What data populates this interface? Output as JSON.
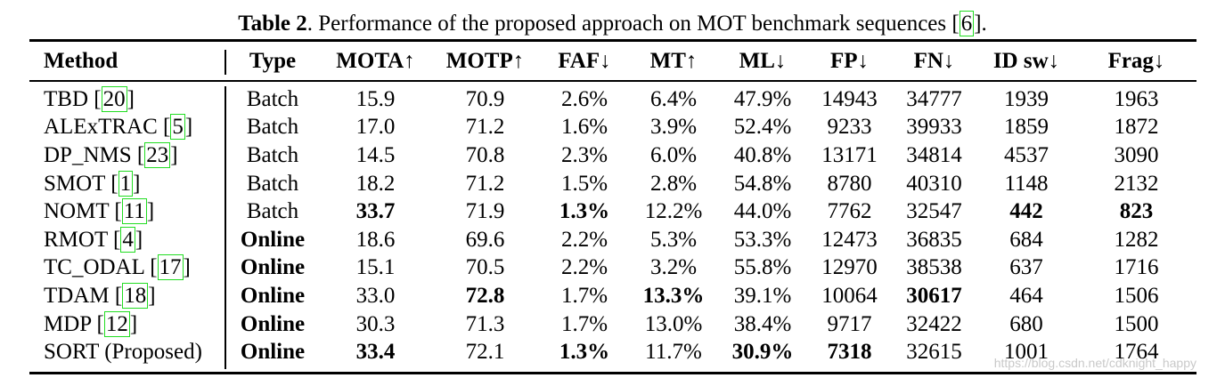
{
  "caption": {
    "label": "Table 2",
    "text": ". Performance of the proposed approach on MOT benchmark sequences [",
    "ref": "6",
    "end": "]."
  },
  "headers": [
    "Method",
    "Type",
    "MOTA↑",
    "MOTP↑",
    "FAF↓",
    "MT↑",
    "ML↓",
    "FP↓",
    "FN↓",
    "ID sw↓",
    "Frag↓"
  ],
  "rows": [
    {
      "name": "TBD [",
      "ref": "20",
      "close": "]",
      "type": "Batch",
      "values": [
        "15.9",
        "70.9",
        "2.6%",
        "6.4%",
        "47.9%",
        "14943",
        "34777",
        "1939",
        "1963"
      ]
    },
    {
      "name": "ALExTRAC [",
      "ref": "5",
      "close": "]",
      "type": "Batch",
      "values": [
        "17.0",
        "71.2",
        "1.6%",
        "3.9%",
        "52.4%",
        "9233",
        "39933",
        "1859",
        "1872"
      ]
    },
    {
      "name": "DP_NMS [",
      "ref": "23",
      "close": "]",
      "type": "Batch",
      "values": [
        "14.5",
        "70.8",
        "2.3%",
        "6.0%",
        "40.8%",
        "13171",
        "34814",
        "4537",
        "3090"
      ]
    },
    {
      "name": "SMOT [",
      "ref": "1",
      "close": "]",
      "type": "Batch",
      "values": [
        "18.2",
        "71.2",
        "1.5%",
        "2.8%",
        "54.8%",
        "8780",
        "40310",
        "1148",
        "2132"
      ]
    },
    {
      "name": "NOMT [",
      "ref": "11",
      "close": "]",
      "type": "Batch",
      "values": [
        "33.7",
        "71.9",
        "1.3%",
        "12.2%",
        "44.0%",
        "7762",
        "32547",
        "442",
        "823"
      ]
    },
    {
      "name": "RMOT [",
      "ref": "4",
      "close": "]",
      "type": "Online",
      "values": [
        "18.6",
        "69.6",
        "2.2%",
        "5.3%",
        "53.3%",
        "12473",
        "36835",
        "684",
        "1282"
      ]
    },
    {
      "name": "TC_ODAL [",
      "ref": "17",
      "close": "]",
      "type": "Online",
      "values": [
        "15.1",
        "70.5",
        "2.2%",
        "3.2%",
        "55.8%",
        "12970",
        "38538",
        "637",
        "1716"
      ]
    },
    {
      "name": "TDAM [",
      "ref": "18",
      "close": "]",
      "type": "Online",
      "values": [
        "33.0",
        "72.8",
        "1.7%",
        "13.3%",
        "39.1%",
        "10064",
        "30617",
        "464",
        "1506"
      ]
    },
    {
      "name": "MDP [",
      "ref": "12",
      "close": "]",
      "type": "Online",
      "values": [
        "30.3",
        "71.3",
        "1.7%",
        "13.0%",
        "38.4%",
        "9717",
        "32422",
        "680",
        "1500"
      ]
    },
    {
      "name": "SORT (Proposed)",
      "ref": "",
      "close": "",
      "type": "Online",
      "values": [
        "33.4",
        "72.1",
        "1.3%",
        "11.7%",
        "30.9%",
        "7318",
        "32615",
        "1001",
        "1764"
      ]
    }
  ],
  "bold_cells": [
    [
      4,
      0
    ],
    [
      4,
      2
    ],
    [
      4,
      7
    ],
    [
      4,
      8
    ],
    [
      7,
      1
    ],
    [
      7,
      3
    ],
    [
      7,
      6
    ],
    [
      9,
      0
    ],
    [
      9,
      2
    ],
    [
      9,
      4
    ],
    [
      9,
      5
    ]
  ],
  "bold_types": [
    "Online"
  ],
  "watermark": "https://blog.csdn.net/cdknight_happy"
}
